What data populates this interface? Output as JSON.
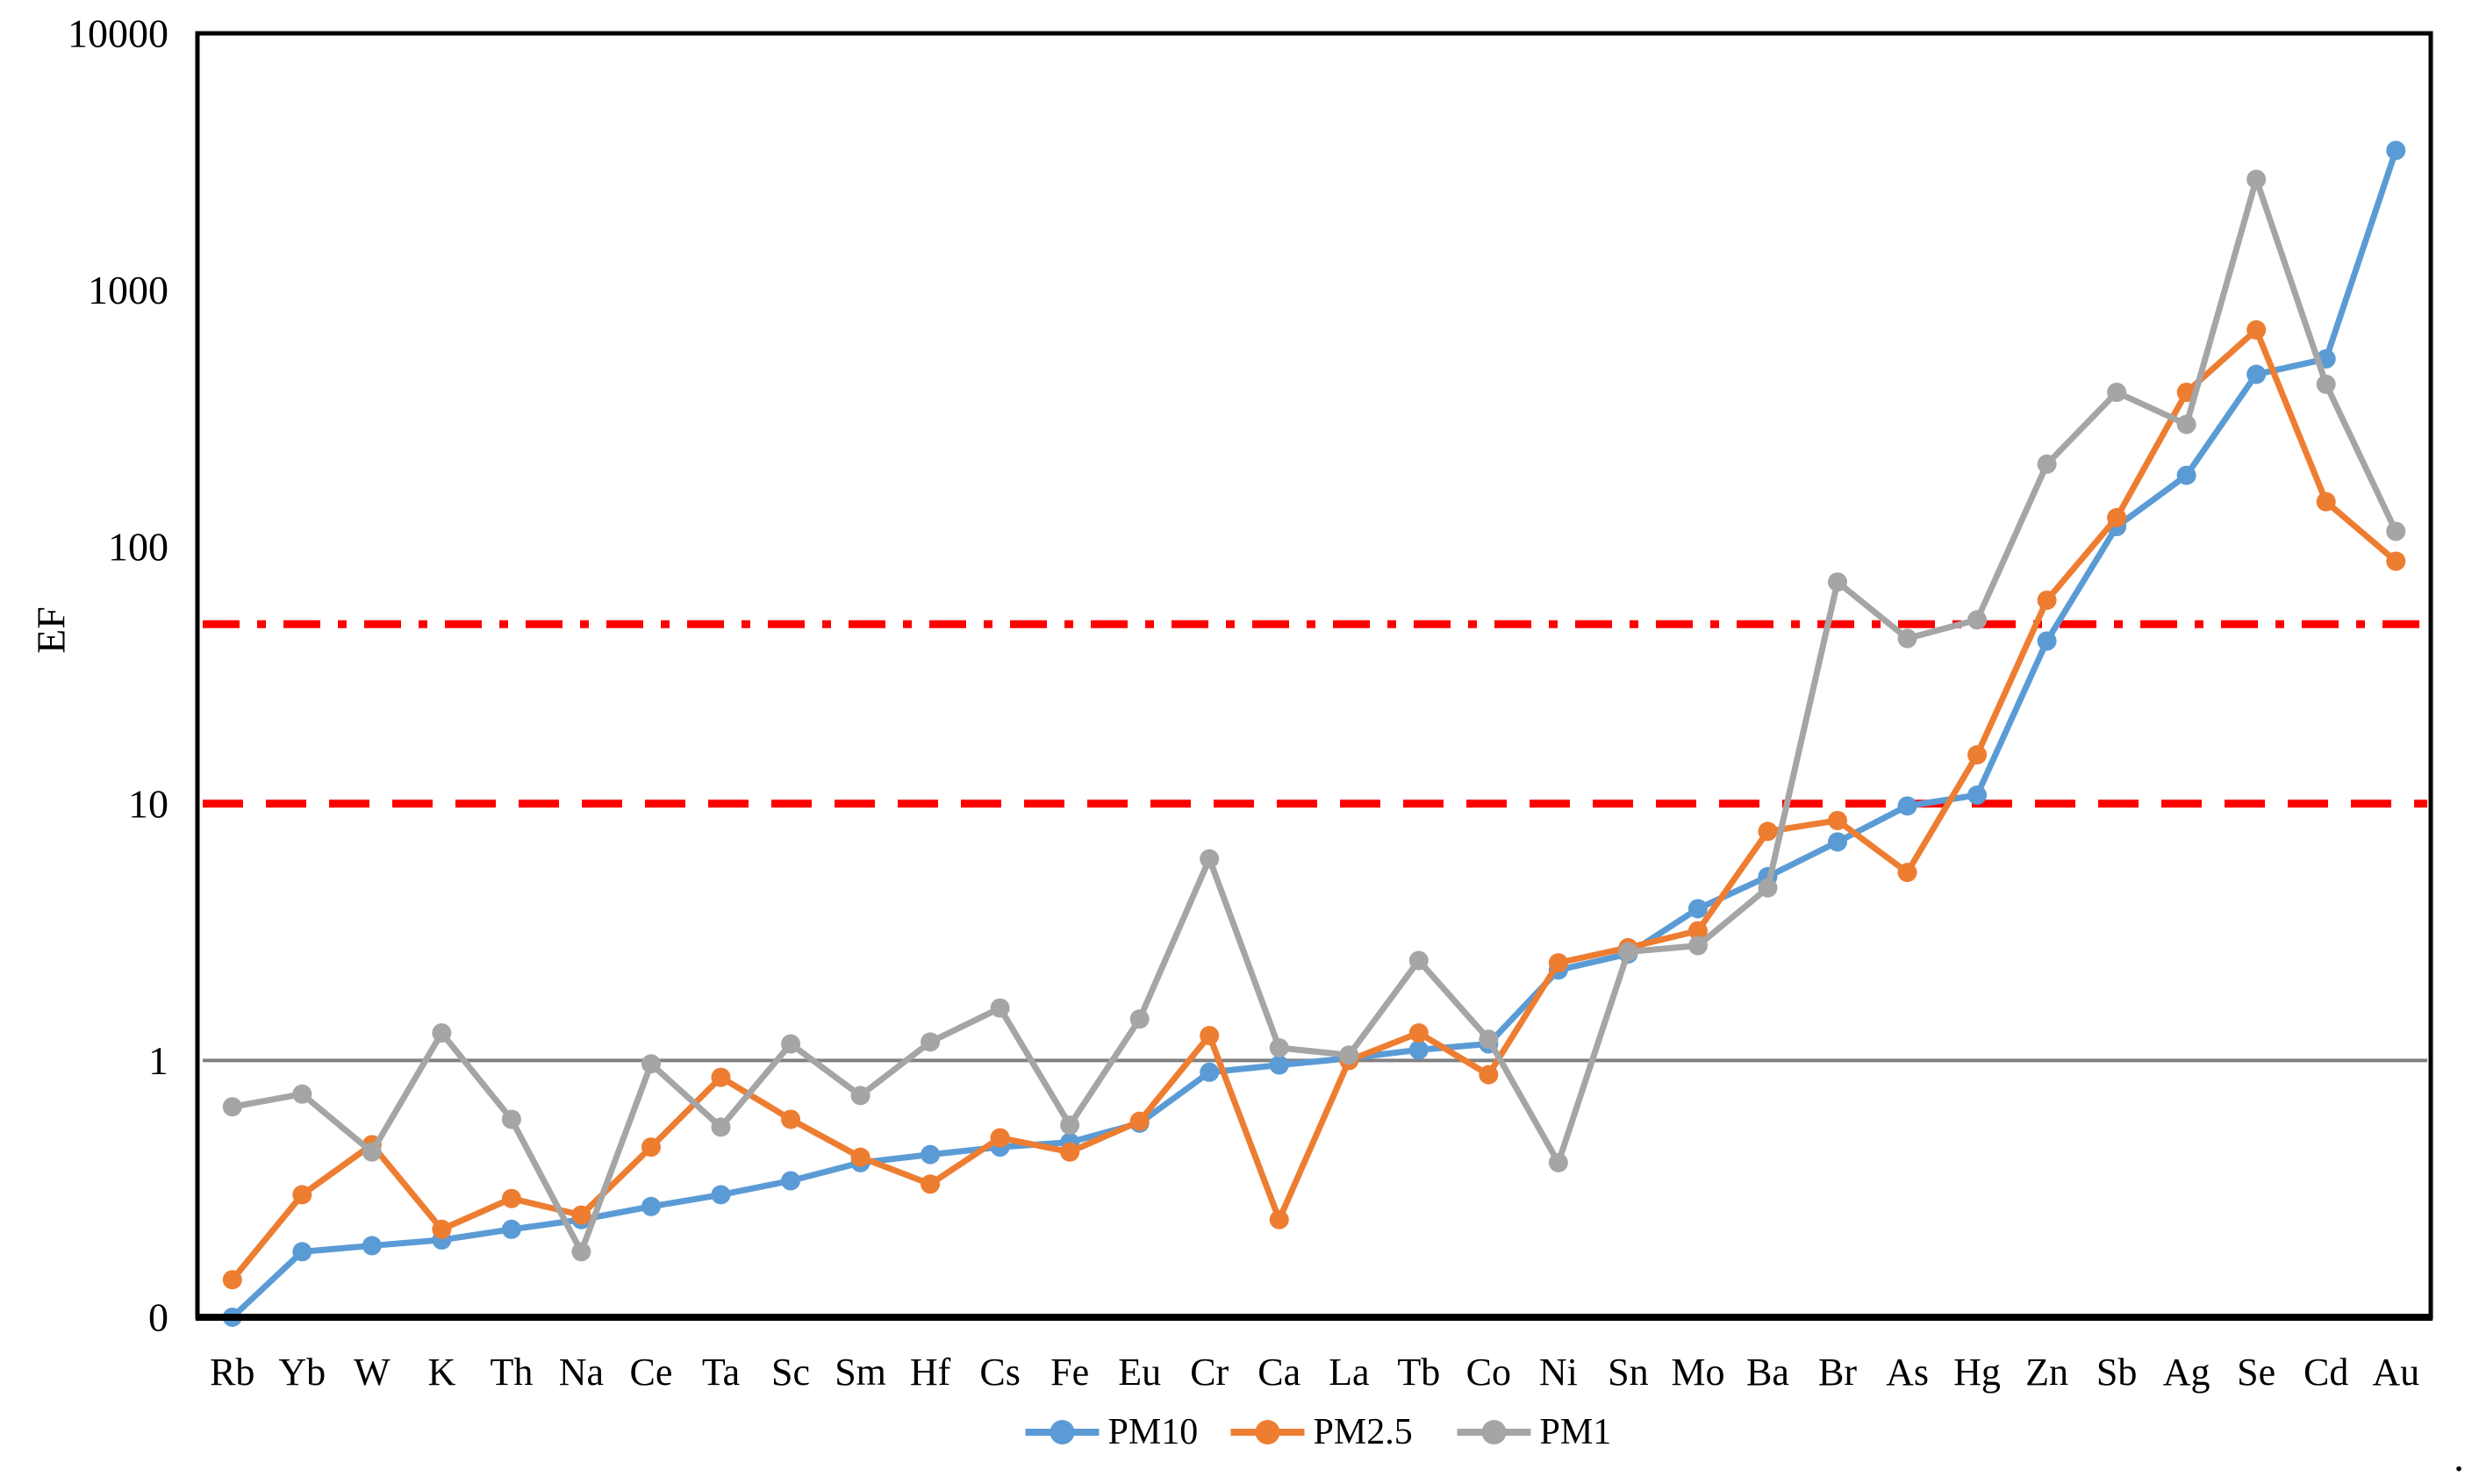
{
  "chart_data": {
    "type": "line",
    "title": "",
    "ylabel": "EF",
    "xlabel": "",
    "y_axis": {
      "scale": "log",
      "max": 10000,
      "min_value": 0.1,
      "tick_labels": [
        "10000",
        "1000",
        "100",
        "10",
        "1",
        "0"
      ],
      "tick_values": [
        10000,
        1000,
        100,
        10,
        1,
        0.1
      ],
      "grid": false
    },
    "categories": [
      "Rb",
      "Yb",
      "W",
      "K",
      "Th",
      "Na",
      "Ce",
      "Ta",
      "Sc",
      "Sm",
      "Hf",
      "Cs",
      "Fe",
      "Eu",
      "Cr",
      "Ca",
      "La",
      "Tb",
      "Co",
      "Ni",
      "Sn",
      "Mo",
      "Ba",
      "Br",
      "As",
      "Hg",
      "Zn",
      "Sb",
      "Ag",
      "Se",
      "Cd",
      "Au"
    ],
    "series": [
      {
        "name": "PM10",
        "color": "#5B9BD5",
        "values": [
          0.1,
          0.18,
          0.19,
          0.2,
          0.22,
          0.24,
          0.27,
          0.3,
          0.34,
          0.4,
          0.43,
          0.46,
          0.48,
          0.57,
          0.9,
          0.96,
          1.02,
          1.1,
          1.16,
          2.25,
          2.6,
          3.9,
          5.2,
          7.1,
          9.8,
          10.8,
          43,
          120,
          190,
          470,
          540,
          3500
        ]
      },
      {
        "name": "PM2.5",
        "color": "#ED7D31",
        "values": [
          0.14,
          0.3,
          0.47,
          0.22,
          0.29,
          0.25,
          0.46,
          0.86,
          0.59,
          0.42,
          0.33,
          0.5,
          0.44,
          0.58,
          1.25,
          0.24,
          1.0,
          1.28,
          0.88,
          2.4,
          2.75,
          3.2,
          7.8,
          8.6,
          5.4,
          15.5,
          62,
          130,
          400,
          700,
          150,
          88
        ]
      },
      {
        "name": "PM1",
        "color": "#A5A5A5",
        "values": [
          0.66,
          0.74,
          0.44,
          1.28,
          0.59,
          0.18,
          0.97,
          0.55,
          1.16,
          0.73,
          1.18,
          1.6,
          0.56,
          1.45,
          6.1,
          1.12,
          1.05,
          2.45,
          1.21,
          0.4,
          2.65,
          2.8,
          4.7,
          73,
          44,
          52,
          210,
          400,
          300,
          2700,
          430,
          115
        ]
      }
    ],
    "reference_lines": [
      {
        "value": 50,
        "color": "#FF0000",
        "style": "dashdot",
        "width": 9,
        "name": "ef-50-line"
      },
      {
        "value": 10,
        "color": "#FF0000",
        "style": "dash",
        "width": 9,
        "name": "ef-10-line"
      },
      {
        "value": 1,
        "color": "#808080",
        "style": "solid",
        "width": 4,
        "name": "ef-1-line"
      }
    ],
    "legend": {
      "position": "bottom-center",
      "items": [
        {
          "label": "PM10",
          "color": "#5B9BD5"
        },
        {
          "label": "PM2.5",
          "color": "#ED7D31"
        },
        {
          "label": "PM1",
          "color": "#A5A5A5"
        }
      ]
    }
  },
  "misc": {
    "corner_dot": ".",
    "axis_color": "#000000",
    "background": "#FFFFFF"
  }
}
